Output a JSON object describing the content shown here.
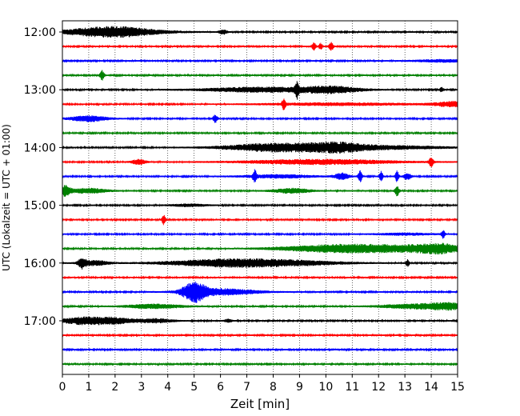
{
  "chart_data": {
    "type": "line",
    "title": "",
    "xlabel": "Zeit  [min]",
    "ylabel": "UTC (Lokalzeit = UTC + 01:00)",
    "xlim": [
      0,
      15
    ],
    "x_ticks": [
      "0",
      "1",
      "2",
      "3",
      "4",
      "5",
      "6",
      "7",
      "8",
      "9",
      "10",
      "11",
      "12",
      "13",
      "14",
      "15"
    ],
    "y_ticks": [
      {
        "label": "12:00",
        "row": 0
      },
      {
        "label": "13:00",
        "row": 4
      },
      {
        "label": "14:00",
        "row": 8
      },
      {
        "label": "15:00",
        "row": 12
      },
      {
        "label": "16:00",
        "row": 16
      },
      {
        "label": "17:00",
        "row": 20
      }
    ],
    "vertical_grid": true,
    "colors": [
      "#000000",
      "#ff0000",
      "#0000ff",
      "#008000"
    ],
    "rows": [
      {
        "start": "12:00",
        "bursts": [
          [
            0.9,
            0.9,
            3.2
          ],
          [
            2.2,
            0.8,
            3.6
          ],
          [
            2.8,
            1.2,
            2.0
          ],
          [
            6.1,
            0.1,
            3.0
          ]
        ]
      },
      {
        "start": "12:15",
        "bursts": [
          [
            9.55,
            0.05,
            5.0
          ],
          [
            9.8,
            0.05,
            4.0
          ],
          [
            10.2,
            0.06,
            5.0
          ]
        ]
      },
      {
        "start": "12:30",
        "bursts": [
          [
            14.5,
            0.8,
            1.5
          ]
        ]
      },
      {
        "start": "12:45",
        "bursts": [
          [
            1.5,
            0.06,
            6.0
          ]
        ]
      },
      {
        "start": "13:00",
        "bursts": [
          [
            7.5,
            1.5,
            3.0
          ],
          [
            8.9,
            0.05,
            9.0
          ],
          [
            10.2,
            0.8,
            4.0
          ],
          [
            14.4,
            0.05,
            3.0
          ]
        ]
      },
      {
        "start": "13:15",
        "bursts": [
          [
            8.4,
            0.05,
            6.0
          ],
          [
            10.5,
            2.0,
            1.5
          ],
          [
            14.8,
            0.5,
            3.0
          ]
        ]
      },
      {
        "start": "13:30",
        "bursts": [
          [
            1.0,
            0.5,
            3.5
          ],
          [
            5.8,
            0.06,
            5.0
          ]
        ]
      },
      {
        "start": "13:45",
        "bursts": []
      },
      {
        "start": "14:00",
        "bursts": [
          [
            7.5,
            1.2,
            2.5
          ],
          [
            9.2,
            1.5,
            4.0
          ],
          [
            10.5,
            0.6,
            3.0
          ],
          [
            12.5,
            1.5,
            2.0
          ]
        ]
      },
      {
        "start": "14:15",
        "bursts": [
          [
            2.9,
            0.2,
            3.0
          ],
          [
            9.8,
            2.0,
            3.0
          ],
          [
            14.0,
            0.06,
            5.5
          ]
        ]
      },
      {
        "start": "14:30",
        "bursts": [
          [
            7.3,
            0.05,
            8.0
          ],
          [
            8.2,
            1.0,
            2.0
          ],
          [
            10.6,
            0.2,
            4.0
          ],
          [
            11.3,
            0.05,
            7.0
          ],
          [
            12.1,
            0.05,
            6.0
          ],
          [
            12.7,
            0.05,
            7.0
          ],
          [
            13.1,
            0.1,
            4.0
          ]
        ]
      },
      {
        "start": "14:45",
        "bursts": [
          [
            0.1,
            0.15,
            6.0
          ],
          [
            1.0,
            0.5,
            3.0
          ],
          [
            8.7,
            0.5,
            3.0
          ],
          [
            12.7,
            0.06,
            6.0
          ]
        ]
      },
      {
        "start": "15:00",
        "bursts": [
          [
            4.8,
            0.5,
            1.5
          ]
        ]
      },
      {
        "start": "15:15",
        "bursts": [
          [
            3.85,
            0.05,
            6.0
          ]
        ]
      },
      {
        "start": "15:30",
        "bursts": [
          [
            14.45,
            0.05,
            5.0
          ],
          [
            13.0,
            0.8,
            1.2
          ]
        ]
      },
      {
        "start": "15:45",
        "bursts": [
          [
            10.2,
            1.5,
            3.5
          ],
          [
            12.8,
            1.8,
            3.5
          ],
          [
            14.3,
            0.6,
            4.0
          ]
        ]
      },
      {
        "start": "16:00",
        "bursts": [
          [
            0.75,
            0.1,
            6.0
          ],
          [
            1.2,
            0.4,
            3.0
          ],
          [
            6.0,
            1.5,
            4.0
          ],
          [
            8.5,
            1.5,
            3.0
          ],
          [
            13.1,
            0.05,
            4.0
          ]
        ]
      },
      {
        "start": "16:15",
        "bursts": []
      },
      {
        "start": "16:30",
        "bursts": [
          [
            5.0,
            0.3,
            11.0
          ],
          [
            6.0,
            1.0,
            4.0
          ]
        ]
      },
      {
        "start": "16:45",
        "bursts": [
          [
            3.5,
            0.8,
            2.5
          ],
          [
            13.5,
            1.0,
            3.0
          ],
          [
            14.7,
            0.5,
            3.0
          ]
        ]
      },
      {
        "start": "17:00",
        "bursts": [
          [
            0.8,
            0.6,
            4.5
          ],
          [
            2.0,
            0.5,
            3.5
          ],
          [
            3.5,
            0.5,
            2.5
          ],
          [
            6.3,
            0.1,
            2.0
          ]
        ]
      },
      {
        "start": "17:15",
        "bursts": []
      },
      {
        "start": "17:30",
        "bursts": []
      },
      {
        "start": "17:45",
        "bursts": []
      }
    ]
  }
}
